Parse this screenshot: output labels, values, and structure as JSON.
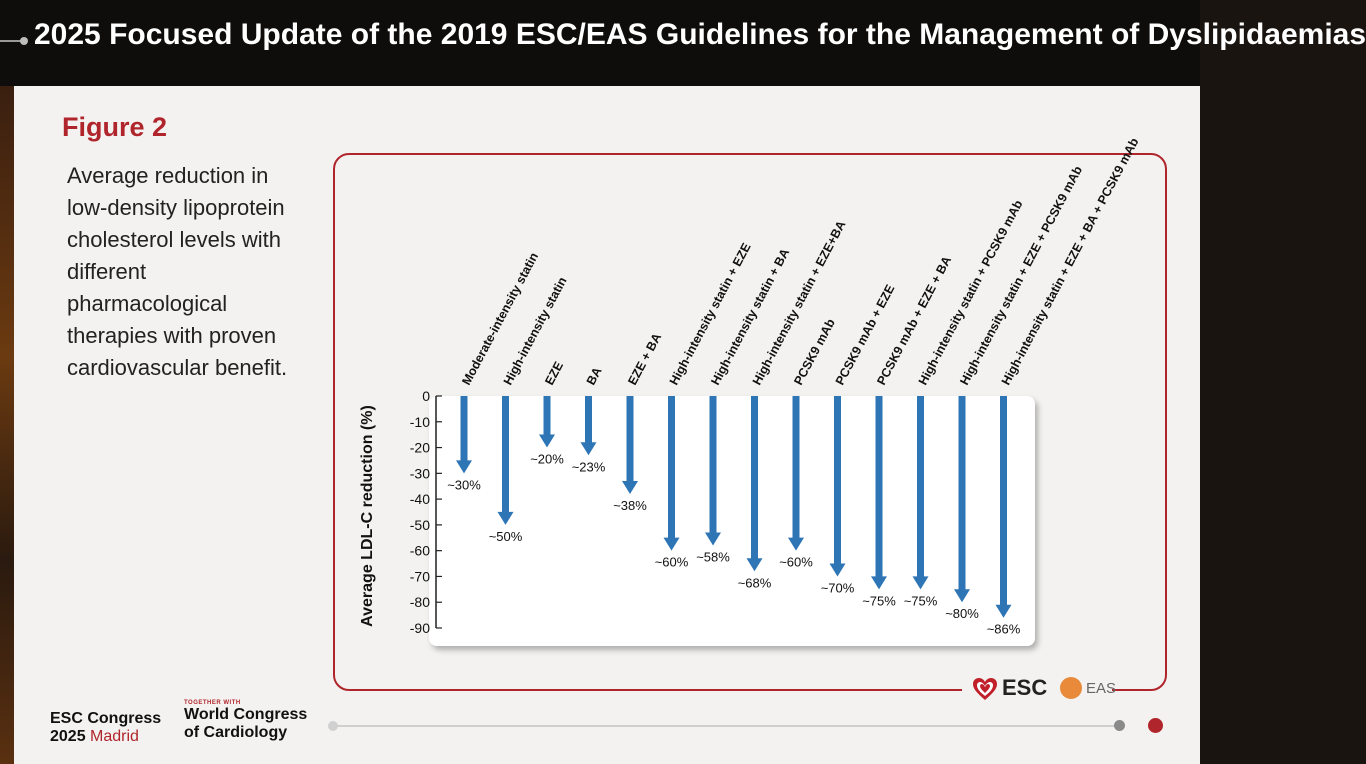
{
  "header": {
    "title": "2025 Focused Update of the 2019 ESC/EAS Guidelines for the Management of Dyslipidaemias"
  },
  "figure": {
    "label": "Figure 2",
    "caption_lines": [
      "Average reduction in",
      "low-density lipoprotein",
      "cholesterol levels with",
      "different",
      "pharmacological",
      "therapies with proven",
      "cardiovascular benefit."
    ]
  },
  "chart_data": {
    "type": "bar",
    "orientation": "downward-arrows",
    "title": "",
    "xlabel": "",
    "ylabel": "Average LDL-C reduction (%)",
    "ylim": [
      -90,
      0
    ],
    "yticks": [
      0,
      -10,
      -20,
      -30,
      -40,
      -50,
      -60,
      -70,
      -80,
      -90
    ],
    "categories": [
      "Moderate-intensity statin",
      "High-intensity statin",
      "EZE",
      "BA",
      "EZE + BA",
      "High-intensity statin + EZE",
      "High-intensity statin + BA",
      "High-intensity statin + EZE+BA",
      "PCSK9 mAb",
      "PCSK9 mAb + EZE",
      "PCSK9 mAb + EZE + BA",
      "High-intensity statin + PCSK9 mAb",
      "High-intensity statin + EZE + PCSK9 mAb",
      "High-intensity statin + EZE + BA + PCSK9 mAb"
    ],
    "values": [
      -30,
      -50,
      -20,
      -23,
      -38,
      -60,
      -58,
      -68,
      -60,
      -70,
      -75,
      -75,
      -80,
      -86
    ],
    "value_labels": [
      "~30%",
      "~50%",
      "~20%",
      "~23%",
      "~38%",
      "~60%",
      "~58%",
      "~68%",
      "~60%",
      "~70%",
      "~75%",
      "~75%",
      "~80%",
      "~86%"
    ],
    "color": "#2e75b6"
  },
  "footer": {
    "congress_line1": "ESC Congress",
    "congress_year": "2025",
    "congress_city": "Madrid",
    "together_with": "TOGETHER WITH",
    "world_line1": "World Congress",
    "world_line2": "of Cardiology",
    "esc_logo": "ESC",
    "eas_logo": "EAS"
  },
  "colors": {
    "accent": "#b0252c",
    "arrow": "#2e75b6"
  }
}
